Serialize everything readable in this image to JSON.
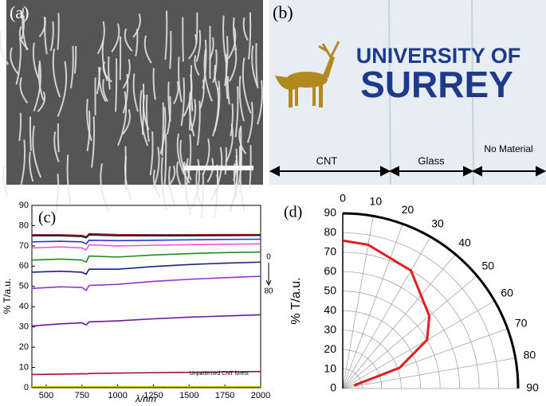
{
  "panels": {
    "a": {
      "label": "(a)"
    },
    "b": {
      "label": "(b)",
      "logo_line1": "UNIVERSITY OF",
      "logo_line2": "SURREY",
      "regions": [
        "CNT",
        "Glass",
        "No Material"
      ]
    }
  },
  "chart_data": [
    {
      "type": "line",
      "panel_label": "(c)",
      "xlabel": "λ/nm",
      "ylabel": "% T/a.u.",
      "annotations": [
        "0",
        "80",
        "Unpatterned CNT forest"
      ],
      "xlim": [
        400,
        2000
      ],
      "xticks": [
        500,
        750,
        1000,
        1250,
        1500,
        1750,
        2000
      ],
      "ylim": [
        0,
        90
      ],
      "yticks": [
        0,
        10,
        20,
        30,
        40,
        50,
        60,
        70,
        80,
        90
      ],
      "x": [
        400,
        600,
        750,
        780,
        800,
        1000,
        1250,
        1500,
        1750,
        2000
      ],
      "series": [
        {
          "color": "#8b1a1a",
          "values": [
            75.5,
            75.5,
            75.2,
            74.5,
            76,
            75.6,
            75.5,
            75.5,
            75.6,
            75.6
          ]
        },
        {
          "color": "#222222",
          "values": [
            75,
            75,
            74.6,
            74,
            75.4,
            75,
            75,
            75,
            75.1,
            75.2
          ]
        },
        {
          "color": "#3333cc",
          "values": [
            72,
            72.3,
            72,
            71,
            72.8,
            72.6,
            72.8,
            73,
            73.2,
            73.3
          ]
        },
        {
          "color": "#ff55cc",
          "values": [
            69,
            69.5,
            69,
            68,
            70.5,
            70,
            70.3,
            70.6,
            70.8,
            71
          ]
        },
        {
          "color": "#228b22",
          "values": [
            63,
            63.5,
            63,
            62,
            65,
            64.5,
            65.5,
            66.2,
            66.7,
            67
          ]
        },
        {
          "color": "#1a237e",
          "values": [
            57,
            57.5,
            57,
            56,
            58.5,
            58.5,
            59.8,
            60.8,
            61.5,
            62
          ]
        },
        {
          "color": "#9933cc",
          "values": [
            49,
            49.8,
            49.5,
            48,
            50.5,
            51,
            52.5,
            53.5,
            54.3,
            55
          ]
        },
        {
          "color": "#6a1b9a",
          "values": [
            30.5,
            31.5,
            32,
            31,
            32.5,
            33,
            34,
            34.8,
            35.4,
            36
          ]
        },
        {
          "color": "#a0162a",
          "values": [
            6.5,
            6.7,
            6.9,
            6.8,
            7,
            7.2,
            7.4,
            7.6,
            7.8,
            8
          ]
        },
        {
          "color": "#cccc00",
          "values": [
            0.5,
            0.5,
            0.5,
            0.5,
            0.5,
            0.5,
            0.5,
            0.5,
            0.5,
            0.5
          ]
        }
      ]
    },
    {
      "type": "polar",
      "panel_label": "(d)",
      "ylabel": "% T/a.u.",
      "rlim": [
        0,
        90
      ],
      "rticks": [
        0,
        10,
        20,
        30,
        40,
        50,
        60,
        70,
        80,
        90
      ],
      "thetalim": [
        0,
        90
      ],
      "thetaticks": [
        0,
        10,
        20,
        30,
        40,
        50,
        60,
        70,
        80,
        90
      ],
      "theta": [
        0,
        10,
        30,
        50,
        60,
        70,
        75
      ],
      "r": [
        76,
        75,
        70,
        58,
        50,
        31,
        6
      ],
      "color": "#e02020"
    }
  ]
}
